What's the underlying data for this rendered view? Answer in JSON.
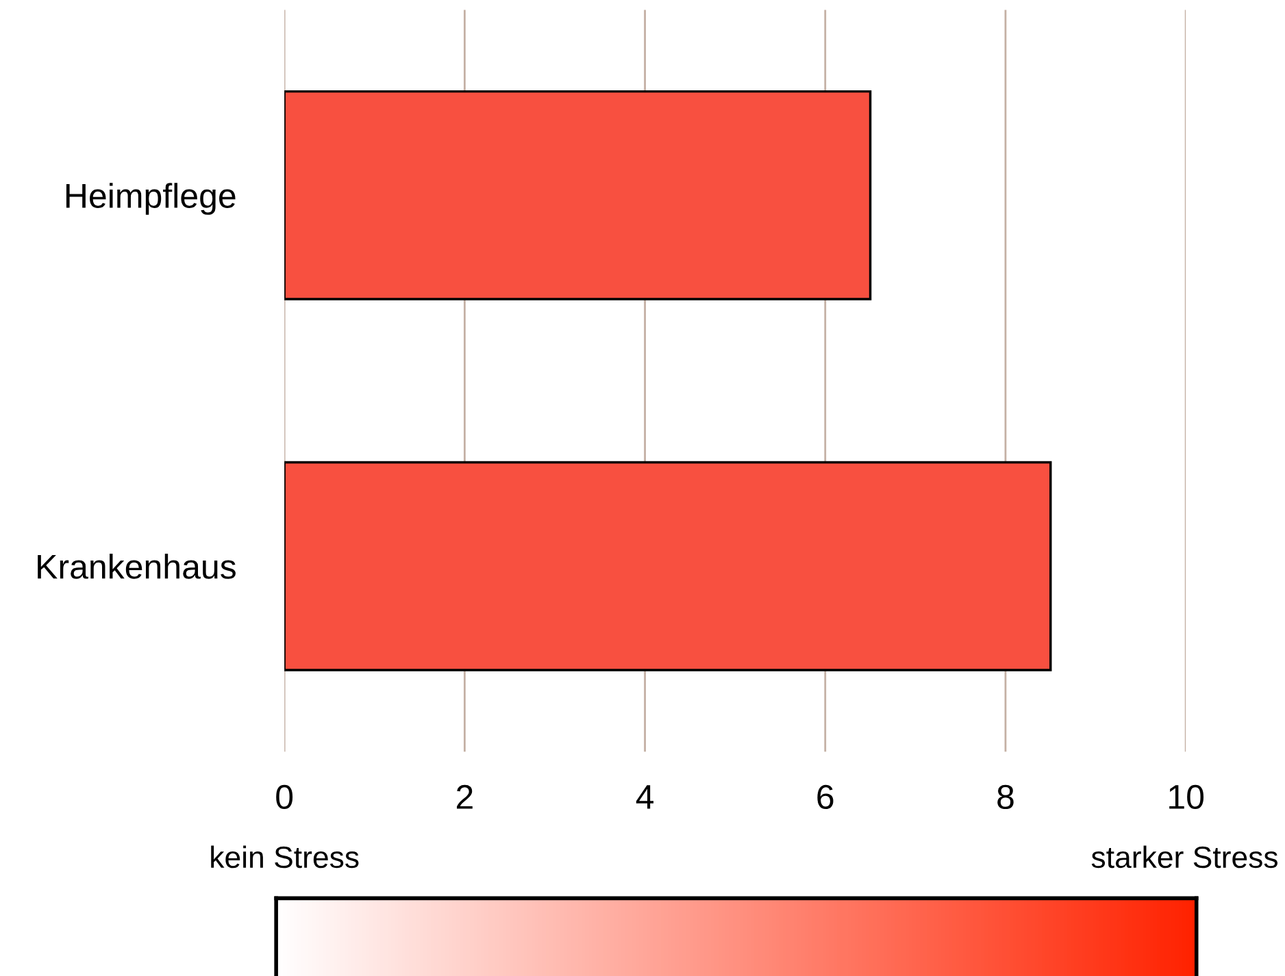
{
  "chart_data": {
    "type": "bar",
    "orientation": "horizontal",
    "categories": [
      "Heimpflege",
      "Krankenhaus"
    ],
    "values": [
      6.5,
      8.5
    ],
    "color": "#f85040",
    "xlim": [
      0,
      10
    ],
    "xticks": [
      0,
      2,
      4,
      6,
      8,
      10
    ],
    "grid": "x",
    "annotations": [
      "kein Stress",
      "starker Stress"
    ]
  }
}
